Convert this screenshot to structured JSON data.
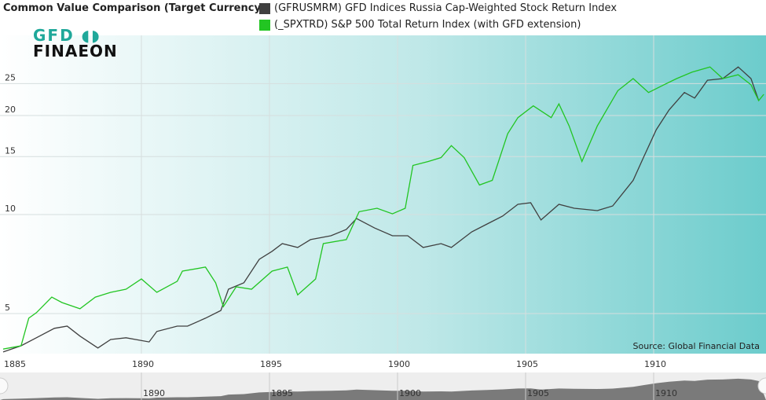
{
  "chart_data": {
    "type": "line",
    "title": "Common Value Comparison (Target Currency)",
    "yscale": "log",
    "ylim": [
      3.8,
      30
    ],
    "xlim": [
      1884.6,
      1914.5
    ],
    "yticks": [
      "5",
      "10",
      "15",
      "20",
      "25"
    ],
    "xticks": [
      "1885",
      "1890",
      "1895",
      "1900",
      "1905",
      "1910"
    ],
    "navigator_ticks": [
      "1890",
      "1895",
      "1900",
      "1905",
      "1910"
    ],
    "source": "Source: Global Financial Data",
    "logo": "GFD FINAEON",
    "series": [
      {
        "name": "(GFRUSMRM) GFD Indices Russia Cap-Weighted Stock Return Index",
        "color": "#404040",
        "x": [
          1884.6,
          1885.3,
          1885.9,
          1886.6,
          1887.1,
          1887.6,
          1888.3,
          1888.8,
          1889.4,
          1890.3,
          1890.6,
          1891.4,
          1891.8,
          1892.5,
          1893.1,
          1893.4,
          1894.0,
          1894.6,
          1895.1,
          1895.5,
          1896.1,
          1896.6,
          1897.4,
          1898.0,
          1898.4,
          1899.1,
          1899.8,
          1900.4,
          1901.0,
          1901.7,
          1902.1,
          1902.9,
          1903.5,
          1904.1,
          1904.7,
          1905.2,
          1905.6,
          1906.3,
          1906.9,
          1907.8,
          1908.4,
          1909.2,
          1909.6,
          1910.1,
          1910.6,
          1911.2,
          1911.6,
          1912.1,
          1912.7,
          1913.3,
          1913.8,
          1914.1
        ],
        "values": [
          3.82,
          3.99,
          4.22,
          4.51,
          4.58,
          4.27,
          3.93,
          4.17,
          4.22,
          4.1,
          4.41,
          4.58,
          4.58,
          4.84,
          5.11,
          5.93,
          6.2,
          7.31,
          7.73,
          8.16,
          7.94,
          8.39,
          8.62,
          9.01,
          9.73,
          9.1,
          8.62,
          8.62,
          7.94,
          8.16,
          7.94,
          8.86,
          9.36,
          9.89,
          10.74,
          10.86,
          9.63,
          10.74,
          10.45,
          10.28,
          10.62,
          12.7,
          14.9,
          18.1,
          20.8,
          23.5,
          22.6,
          25.6,
          25.9,
          28.1,
          25.9,
          22.2
        ]
      },
      {
        "name": "(_SPXTRD) S&P 500 Total Return Index (with GFD extension)",
        "color": "#22c522",
        "x": [
          1884.6,
          1885.3,
          1885.6,
          1885.9,
          1886.5,
          1886.9,
          1887.6,
          1888.2,
          1888.8,
          1889.4,
          1890.0,
          1890.6,
          1891.4,
          1891.6,
          1892.5,
          1892.9,
          1893.2,
          1893.7,
          1894.3,
          1895.1,
          1895.7,
          1896.1,
          1896.8,
          1897.1,
          1898.0,
          1898.5,
          1899.2,
          1899.8,
          1900.3,
          1900.6,
          1901.2,
          1901.7,
          1902.1,
          1902.6,
          1903.2,
          1903.7,
          1904.3,
          1904.7,
          1905.3,
          1906.0,
          1906.3,
          1906.7,
          1907.2,
          1907.8,
          1908.6,
          1909.2,
          1909.8,
          1910.4,
          1910.9,
          1911.5,
          1912.2,
          1912.7,
          1913.3,
          1913.8,
          1914.1,
          1914.3
        ],
        "values": [
          3.9,
          3.99,
          4.84,
          5.03,
          5.61,
          5.4,
          5.17,
          5.61,
          5.8,
          5.93,
          6.37,
          5.8,
          6.27,
          6.73,
          6.92,
          6.2,
          5.25,
          6.03,
          5.93,
          6.73,
          6.92,
          5.7,
          6.37,
          8.16,
          8.39,
          10.2,
          10.45,
          10.05,
          10.45,
          14.1,
          14.5,
          14.9,
          16.2,
          14.9,
          12.3,
          12.7,
          17.6,
          19.7,
          21.4,
          19.7,
          21.7,
          18.6,
          14.5,
          18.6,
          23.8,
          25.9,
          23.5,
          24.8,
          25.9,
          27.1,
          28.1,
          25.9,
          26.6,
          24.8,
          22.2,
          23.2
        ]
      }
    ]
  }
}
